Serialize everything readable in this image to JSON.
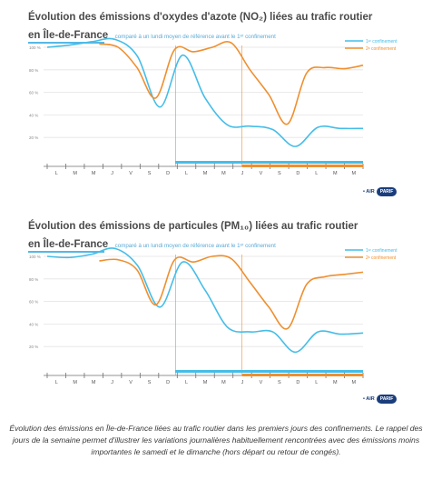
{
  "caption": "Évolution des émissions en Île-de-France liées au trafic routier dans les premiers jours des confinements. Le rappel des jours de la semaine permet d'illustrer les variations journalières habituellement rencontrées avec des émissions moins importantes le samedi et le dimanche (hors départ ou retour de congés).",
  "logo": {
    "left": "• AIR",
    "badge": "PARIF"
  },
  "colors": {
    "first": "#45bde8",
    "second": "#ef8f2f",
    "grid": "#e3e3e3",
    "axis": "#6f6f6f"
  },
  "chart_data": [
    {
      "type": "line",
      "title": "Évolution des émissions d'oxydes d'azote (NO₂) liées au trafic routier",
      "subtitle_region": "en Île-de-France",
      "subtitle": "comparé à un lundi moyen de référence avant le 1ᵉʳ confinement",
      "ylim": [
        0,
        100
      ],
      "yticks": [
        "100 %",
        "80 %",
        "60 %",
        "40 %",
        "20 %"
      ],
      "ytick_values": [
        100,
        80,
        60,
        40,
        20
      ],
      "x_tick_labels": [
        "L",
        "M",
        "M",
        "J",
        "V",
        "S",
        "D",
        "L",
        "M",
        "M",
        "J",
        "V",
        "S",
        "D",
        "L",
        "M",
        "M",
        "J"
      ],
      "legend": "top-right",
      "grid": true,
      "series": [
        {
          "name": "1ᵉʳ confinement",
          "color": "#45bde8",
          "values": [
            100,
            102,
            105,
            107,
            92,
            47,
            93,
            55,
            31,
            30,
            27,
            12,
            29,
            28,
            28
          ]
        },
        {
          "name": "2ᵉ confinement",
          "color": "#ef8f2f",
          "x_start": 3,
          "values": [
            103,
            100,
            82,
            55,
            98,
            96,
            100,
            104,
            80,
            58,
            32,
            77,
            82,
            81,
            84
          ]
        }
      ]
    },
    {
      "type": "line",
      "title": "Évolution des émissions de particules (PM₁₀) liées au trafic routier",
      "subtitle_region": "en Île-de-France",
      "subtitle": "comparé à un lundi moyen de référence avant le 1ᵉʳ confinement",
      "ylim": [
        0,
        100
      ],
      "yticks": [
        "100 %",
        "80 %",
        "60 %",
        "40 %",
        "20 %"
      ],
      "ytick_values": [
        100,
        80,
        60,
        40,
        20
      ],
      "x_tick_labels": [
        "L",
        "M",
        "M",
        "J",
        "V",
        "S",
        "D",
        "L",
        "M",
        "M",
        "J",
        "V",
        "S",
        "D",
        "L",
        "M",
        "M",
        "J"
      ],
      "legend": "top-right",
      "grid": true,
      "series": [
        {
          "name": "1ᵉʳ confinement",
          "color": "#45bde8",
          "values": [
            100,
            99,
            102,
            107,
            92,
            55,
            95,
            70,
            37,
            33,
            33,
            15,
            33,
            31,
            32
          ]
        },
        {
          "name": "2ᵉ confinement",
          "color": "#ef8f2f",
          "x_start": 3,
          "values": [
            96,
            97,
            88,
            57,
            97,
            95,
            100,
            98,
            77,
            55,
            36,
            75,
            82,
            84,
            86
          ]
        }
      ]
    }
  ]
}
